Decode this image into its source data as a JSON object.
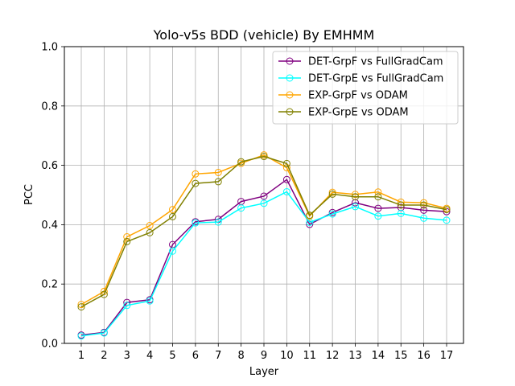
{
  "chart_data": {
    "type": "line",
    "title": "Yolo-v5s BDD (vehicle) By EMHMM",
    "xlabel": "Layer",
    "ylabel": "PCC",
    "x": [
      1,
      2,
      3,
      4,
      5,
      6,
      7,
      8,
      9,
      10,
      11,
      12,
      13,
      14,
      15,
      16,
      17
    ],
    "ylim": [
      0.0,
      1.0
    ],
    "yticks": [
      "0.0",
      "0.2",
      "0.4",
      "0.6",
      "0.8",
      "1.0"
    ],
    "grid": true,
    "legend_position": "top-right",
    "series": [
      {
        "name": "DET-GrpF vs FullGradCam",
        "color": "#800080",
        "marker": "hollow-circle",
        "values": [
          0.028,
          0.037,
          0.138,
          0.147,
          0.333,
          0.41,
          0.418,
          0.478,
          0.496,
          0.552,
          0.401,
          0.441,
          0.474,
          0.455,
          0.458,
          0.449,
          0.444
        ]
      },
      {
        "name": "DET-GrpE vs FullGradCam",
        "color": "#00ffff",
        "marker": "hollow-circle",
        "values": [
          0.025,
          0.035,
          0.128,
          0.143,
          0.311,
          0.406,
          0.409,
          0.456,
          0.472,
          0.511,
          0.408,
          0.436,
          0.461,
          0.429,
          0.438,
          0.422,
          0.415
        ]
      },
      {
        "name": "EXP-GrpF vs ODAM",
        "color": "#ffa500",
        "marker": "hollow-circle",
        "values": [
          0.131,
          0.175,
          0.359,
          0.397,
          0.451,
          0.571,
          0.576,
          0.607,
          0.635,
          0.592,
          0.429,
          0.509,
          0.502,
          0.51,
          0.476,
          0.474,
          0.455
        ]
      },
      {
        "name": "EXP-GrpE vs ODAM",
        "color": "#808000",
        "marker": "hollow-circle",
        "values": [
          0.123,
          0.165,
          0.343,
          0.373,
          0.427,
          0.539,
          0.545,
          0.612,
          0.63,
          0.606,
          0.432,
          0.503,
          0.494,
          0.494,
          0.466,
          0.466,
          0.451
        ]
      }
    ]
  }
}
